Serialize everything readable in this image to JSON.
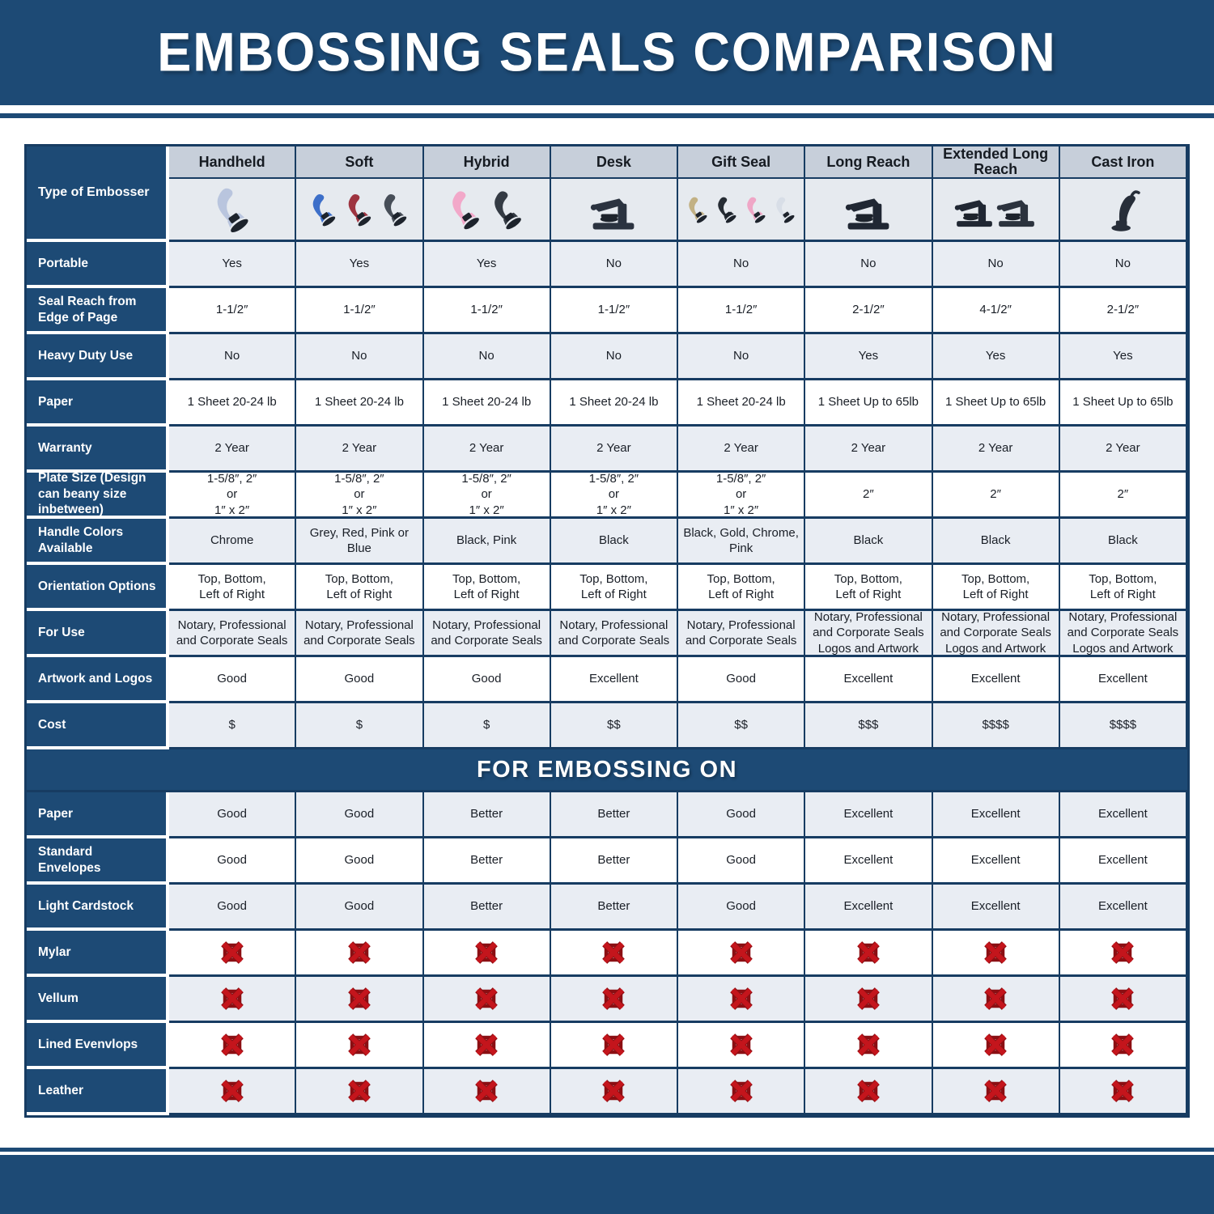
{
  "title": "EMBOSSING SEALS COMPARISON",
  "colors": {
    "navy": "#1d4a75",
    "navyBorder": "#173c62",
    "headerStrip": "#c7cfda",
    "rowShade": "#e9edf3",
    "xRed": "#c4151c",
    "xRedDark": "#8b0f13"
  },
  "table": {
    "corner_label": "Type of Embosser",
    "columns": [
      "Handheld",
      "Soft",
      "Hybrid",
      "Desk",
      "Gift Seal",
      "Long Reach",
      "Extended Long Reach",
      "Cast Iron"
    ],
    "embossers": [
      {
        "name": "handheld-embosser",
        "type": "hand",
        "colors": [
          "#b9c5de"
        ]
      },
      {
        "name": "soft-embosser",
        "type": "hand",
        "colors": [
          "#3d6fc9",
          "#9e3440",
          "#474e58"
        ]
      },
      {
        "name": "hybrid-embosser",
        "type": "hand",
        "colors": [
          "#f2a8c9",
          "#343b44"
        ]
      },
      {
        "name": "desk-embosser",
        "type": "desk",
        "colors": [
          "#2b3340"
        ]
      },
      {
        "name": "gift-seal-embosser",
        "type": "hand",
        "colors": [
          "#c2b184",
          "#262c34",
          "#efa6c6",
          "#d8dee7"
        ]
      },
      {
        "name": "long-reach-embosser",
        "type": "desk",
        "colors": [
          "#202733"
        ]
      },
      {
        "name": "extended-long-reach-embosser",
        "type": "desk",
        "colors": [
          "#202733",
          "#2c333e"
        ]
      },
      {
        "name": "cast-iron-embosser",
        "type": "cast",
        "colors": [
          "#272e39"
        ]
      }
    ],
    "rows": [
      {
        "label": "Portable",
        "shade": true,
        "values": [
          "Yes",
          "Yes",
          "Yes",
          "No",
          "No",
          "No",
          "No",
          "No"
        ]
      },
      {
        "label": "Seal Reach from Edge of Page",
        "shade": false,
        "values": [
          "1-1/2″",
          "1-1/2″",
          "1-1/2″",
          "1-1/2″",
          "1-1/2″",
          "2-1/2″",
          "4-1/2″",
          "2-1/2″"
        ]
      },
      {
        "label": "Heavy Duty Use",
        "shade": true,
        "values": [
          "No",
          "No",
          "No",
          "No",
          "No",
          "Yes",
          "Yes",
          "Yes"
        ]
      },
      {
        "label": "Paper",
        "shade": false,
        "values": [
          "1 Sheet 20-24 lb",
          "1 Sheet 20-24 lb",
          "1 Sheet 20-24 lb",
          "1 Sheet 20-24 lb",
          "1 Sheet 20-24 lb",
          "1 Sheet Up to 65lb",
          "1 Sheet Up to 65lb",
          "1 Sheet Up to 65lb"
        ]
      },
      {
        "label": "Warranty",
        "shade": true,
        "values": [
          "2 Year",
          "2 Year",
          "2 Year",
          "2 Year",
          "2 Year",
          "2 Year",
          "2 Year",
          "2 Year"
        ]
      },
      {
        "label": "Plate Size (Design can beany size inbetween)",
        "shade": false,
        "values": [
          "1-5/8″, 2″\nor\n1″ x 2″",
          "1-5/8″, 2″\nor\n1″ x 2″",
          "1-5/8″, 2″\nor\n1″ x 2″",
          "1-5/8″, 2″\nor\n1″ x 2″",
          "1-5/8″, 2″\nor\n1″ x 2″",
          "2″",
          "2″",
          "2″"
        ]
      },
      {
        "label": "Handle Colors Available",
        "shade": true,
        "values": [
          "Chrome",
          "Grey, Red, Pink or Blue",
          "Black, Pink",
          "Black",
          "Black, Gold, Chrome, Pink",
          "Black",
          "Black",
          "Black"
        ]
      },
      {
        "label": "Orientation Options",
        "shade": false,
        "values": [
          "Top, Bottom,\nLeft of Right",
          "Top, Bottom,\nLeft of Right",
          "Top, Bottom,\nLeft of Right",
          "Top, Bottom,\nLeft of Right",
          "Top, Bottom,\nLeft of Right",
          "Top, Bottom,\nLeft of Right",
          "Top, Bottom,\nLeft of Right",
          "Top, Bottom,\nLeft of Right"
        ]
      },
      {
        "label": "For Use",
        "shade": true,
        "values": [
          "Notary, Professional\nand Corporate Seals",
          "Notary, Professional\nand Corporate Seals",
          "Notary, Professional\nand Corporate Seals",
          "Notary, Professional\nand Corporate Seals",
          "Notary, Professional\nand Corporate Seals",
          "Notary, Professional\nand Corporate Seals\nLogos and Artwork",
          "Notary, Professional\nand Corporate Seals\nLogos and Artwork",
          "Notary, Professional\nand Corporate Seals\nLogos and Artwork"
        ]
      },
      {
        "label": "Artwork and Logos",
        "shade": false,
        "values": [
          "Good",
          "Good",
          "Good",
          "Excellent",
          "Good",
          "Excellent",
          "Excellent",
          "Excellent"
        ]
      },
      {
        "label": "Cost",
        "shade": true,
        "values": [
          "$",
          "$",
          "$",
          "$$",
          "$$",
          "$$$",
          "$$$$",
          "$$$$"
        ]
      }
    ],
    "embossing_section_title": "FOR EMBOSSING ON",
    "embossing_rows": [
      {
        "label": "Paper",
        "shade": true,
        "values": [
          "Good",
          "Good",
          "Better",
          "Better",
          "Good",
          "Excellent",
          "Excellent",
          "Excellent"
        ]
      },
      {
        "label": "Standard Envelopes",
        "shade": false,
        "values": [
          "Good",
          "Good",
          "Better",
          "Better",
          "Good",
          "Excellent",
          "Excellent",
          "Excellent"
        ]
      },
      {
        "label": "Light Cardstock",
        "shade": true,
        "values": [
          "Good",
          "Good",
          "Better",
          "Better",
          "Good",
          "Excellent",
          "Excellent",
          "Excellent"
        ]
      },
      {
        "label": "Mylar",
        "shade": false,
        "icons": true,
        "values": [
          "no",
          "no",
          "no",
          "no",
          "no",
          "no",
          "no",
          "no"
        ]
      },
      {
        "label": "Vellum",
        "shade": true,
        "icons": true,
        "values": [
          "no",
          "no",
          "no",
          "no",
          "no",
          "no",
          "no",
          "no"
        ]
      },
      {
        "label": "Lined Evenvlops",
        "shade": false,
        "icons": true,
        "values": [
          "no",
          "no",
          "no",
          "no",
          "no",
          "no",
          "no",
          "no"
        ]
      },
      {
        "label": "Leather",
        "shade": true,
        "icons": true,
        "values": [
          "no",
          "no",
          "no",
          "no",
          "no",
          "no",
          "no",
          "no"
        ]
      }
    ]
  },
  "chart_data": {
    "type": "table",
    "title": "EMBOSSING SEALS COMPARISON",
    "columns": [
      "Handheld",
      "Soft",
      "Hybrid",
      "Desk",
      "Gift Seal",
      "Long Reach",
      "Extended Long Reach",
      "Cast Iron"
    ],
    "rows": [
      {
        "label": "Portable",
        "values": [
          "Yes",
          "Yes",
          "Yes",
          "No",
          "No",
          "No",
          "No",
          "No"
        ]
      },
      {
        "label": "Seal Reach from Edge of Page",
        "values": [
          "1-1/2″",
          "1-1/2″",
          "1-1/2″",
          "1-1/2″",
          "1-1/2″",
          "2-1/2″",
          "4-1/2″",
          "2-1/2″"
        ]
      },
      {
        "label": "Heavy Duty Use",
        "values": [
          "No",
          "No",
          "No",
          "No",
          "No",
          "Yes",
          "Yes",
          "Yes"
        ]
      },
      {
        "label": "Paper",
        "values": [
          "1 Sheet 20-24 lb",
          "1 Sheet 20-24 lb",
          "1 Sheet 20-24 lb",
          "1 Sheet 20-24 lb",
          "1 Sheet 20-24 lb",
          "1 Sheet Up to 65lb",
          "1 Sheet Up to 65lb",
          "1 Sheet Up to 65lb"
        ]
      },
      {
        "label": "Warranty",
        "values": [
          "2 Year",
          "2 Year",
          "2 Year",
          "2 Year",
          "2 Year",
          "2 Year",
          "2 Year",
          "2 Year"
        ]
      },
      {
        "label": "Plate Size (Design can beany size inbetween)",
        "values": [
          "1-5/8″, 2″ or 1″ x 2″",
          "1-5/8″, 2″ or 1″ x 2″",
          "1-5/8″, 2″ or 1″ x 2″",
          "1-5/8″, 2″ or 1″ x 2″",
          "1-5/8″, 2″ or 1″ x 2″",
          "2″",
          "2″",
          "2″"
        ]
      },
      {
        "label": "Handle Colors Available",
        "values": [
          "Chrome",
          "Grey, Red, Pink or Blue",
          "Black, Pink",
          "Black",
          "Black, Gold, Chrome, Pink",
          "Black",
          "Black",
          "Black"
        ]
      },
      {
        "label": "Orientation Options",
        "values": [
          "Top, Bottom, Left of Right",
          "Top, Bottom, Left of Right",
          "Top, Bottom, Left of Right",
          "Top, Bottom, Left of Right",
          "Top, Bottom, Left of Right",
          "Top, Bottom, Left of Right",
          "Top, Bottom, Left of Right",
          "Top, Bottom, Left of Right"
        ]
      },
      {
        "label": "For Use",
        "values": [
          "Notary, Professional and Corporate Seals",
          "Notary, Professional and Corporate Seals",
          "Notary, Professional and Corporate Seals",
          "Notary, Professional and Corporate Seals",
          "Notary, Professional and Corporate Seals",
          "Notary, Professional and Corporate Seals Logos and Artwork",
          "Notary, Professional and Corporate Seals Logos and Artwork",
          "Notary, Professional and Corporate Seals Logos and Artwork"
        ]
      },
      {
        "label": "Artwork and Logos",
        "values": [
          "Good",
          "Good",
          "Good",
          "Excellent",
          "Good",
          "Excellent",
          "Excellent",
          "Excellent"
        ]
      },
      {
        "label": "Cost",
        "values": [
          "$",
          "$",
          "$",
          "$$",
          "$$",
          "$$$",
          "$$$$",
          "$$$$"
        ]
      },
      {
        "label": "FOR EMBOSSING ON — Paper",
        "values": [
          "Good",
          "Good",
          "Better",
          "Better",
          "Good",
          "Excellent",
          "Excellent",
          "Excellent"
        ]
      },
      {
        "label": "FOR EMBOSSING ON — Standard Envelopes",
        "values": [
          "Good",
          "Good",
          "Better",
          "Better",
          "Good",
          "Excellent",
          "Excellent",
          "Excellent"
        ]
      },
      {
        "label": "FOR EMBOSSING ON — Light Cardstock",
        "values": [
          "Good",
          "Good",
          "Better",
          "Better",
          "Good",
          "Excellent",
          "Excellent",
          "Excellent"
        ]
      },
      {
        "label": "FOR EMBOSSING ON — Mylar",
        "values": [
          "No",
          "No",
          "No",
          "No",
          "No",
          "No",
          "No",
          "No"
        ]
      },
      {
        "label": "FOR EMBOSSING ON — Vellum",
        "values": [
          "No",
          "No",
          "No",
          "No",
          "No",
          "No",
          "No",
          "No"
        ]
      },
      {
        "label": "FOR EMBOSSING ON — Lined Evenvlops",
        "values": [
          "No",
          "No",
          "No",
          "No",
          "No",
          "No",
          "No",
          "No"
        ]
      },
      {
        "label": "FOR EMBOSSING ON — Leather",
        "values": [
          "No",
          "No",
          "No",
          "No",
          "No",
          "No",
          "No",
          "No"
        ]
      }
    ]
  }
}
